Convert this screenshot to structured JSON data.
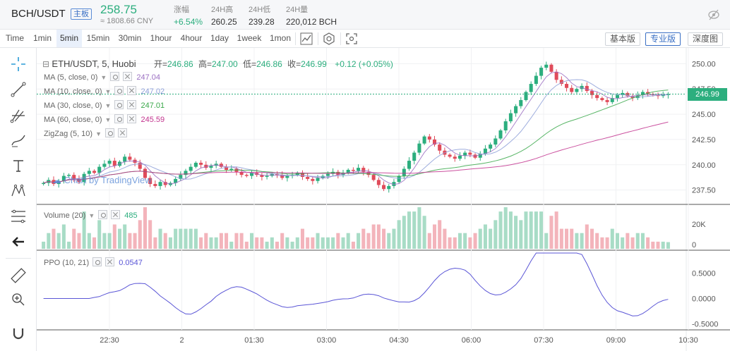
{
  "ticker": {
    "pair": "BCH/USDT",
    "badge": "主板",
    "price": "258.75",
    "cny": "≈ 1808.66 CNY",
    "stats": [
      {
        "label": "涨幅",
        "value": "+6.54%",
        "up": true
      },
      {
        "label": "24H高",
        "value": "260.25"
      },
      {
        "label": "24H低",
        "value": "239.28"
      },
      {
        "label": "24H量",
        "value": "220,012 BCH"
      }
    ]
  },
  "toolbar": {
    "timeframes": [
      "Time",
      "1min",
      "5min",
      "15min",
      "30min",
      "1hour",
      "4hour",
      "1day",
      "1week",
      "1mon"
    ],
    "active_timeframe": "5min",
    "views": [
      "基本版",
      "专业版",
      "深度图"
    ],
    "active_view": "专业版"
  },
  "legend": {
    "symbol": "ETH/USDT, 5, Huobi",
    "open_label": "开=",
    "open": "246.86",
    "high_label": "高=",
    "high": "247.00",
    "low_label": "低=",
    "low": "246.86",
    "close_label": "收=",
    "close": "246.99",
    "change": "+0.12 (+0.05%)"
  },
  "indicators": [
    {
      "name": "MA (5, close, 0)",
      "value": "247.04",
      "color": "#9b6fc2"
    },
    {
      "name": "MA (10, close, 0)",
      "value": "247.02",
      "color": "#8ea0d8"
    },
    {
      "name": "MA (30, close, 0)",
      "value": "247.01",
      "color": "#3aa84a"
    },
    {
      "name": "MA (60, close, 0)",
      "value": "245.59",
      "color": "#c2338e"
    },
    {
      "name": "ZigZag (5, 10)",
      "value": "",
      "color": "#888888"
    }
  ],
  "watermark": "Chart by TradingView",
  "volume_legend": {
    "name": "Volume (20)",
    "value": "485"
  },
  "ppo_legend": {
    "name": "PPO (10, 21)",
    "value": "0.0547"
  },
  "price_axis": [
    "250.00",
    "247.50",
    "245.00",
    "242.50",
    "240.00",
    "237.50"
  ],
  "last_price_tag": "246.99",
  "volume_axis": [
    "20K",
    "0"
  ],
  "ppo_axis": [
    "0.5000",
    "0.0000",
    "-0.5000"
  ],
  "time_axis": [
    "22:30",
    "2",
    "01:30",
    "03:00",
    "04:30",
    "06:00",
    "07:30",
    "09:00",
    "10:30"
  ],
  "colors": {
    "up": "#2cae7e",
    "down": "#e04b5a",
    "accent": "#3a6fc4",
    "ppo_line": "#5a55d6"
  },
  "chart_data": {
    "type": "candlestick",
    "close_series": [
      238.2,
      238.5,
      238.1,
      238.4,
      238.9,
      239.0,
      238.6,
      238.3,
      239.1,
      239.4,
      239.2,
      239.8,
      240.1,
      240.4,
      239.9,
      240.3,
      240.8,
      240.5,
      240.2,
      239.6,
      238.7,
      238.1,
      237.9,
      238.3,
      238.0,
      238.2,
      238.6,
      239.0,
      239.4,
      239.8,
      240.2,
      240.0,
      239.7,
      239.9,
      240.1,
      239.8,
      239.5,
      239.6,
      239.3,
      239.0,
      238.9,
      239.2,
      239.0,
      238.8,
      238.9,
      239.1,
      239.0,
      238.7,
      238.9,
      239.0,
      239.2,
      238.8,
      238.6,
      238.4,
      238.7,
      238.9,
      239.1,
      239.3,
      239.0,
      239.2,
      239.5,
      239.4,
      239.7,
      239.3,
      239.0,
      238.5,
      238.0,
      237.6,
      237.9,
      238.3,
      238.9,
      239.6,
      240.4,
      241.2,
      242.1,
      242.8,
      242.5,
      242.0,
      241.4,
      241.0,
      240.8,
      240.6,
      240.9,
      241.2,
      241.0,
      240.7,
      241.1,
      241.6,
      242.0,
      242.6,
      243.4,
      244.3,
      245.1,
      245.8,
      246.4,
      247.2,
      248.0,
      248.8,
      249.6,
      249.9,
      249.2,
      248.4,
      248.0,
      247.6,
      247.2,
      247.5,
      247.8,
      247.3,
      246.9,
      246.6,
      246.4,
      246.2,
      246.6,
      246.9,
      247.1,
      246.8,
      246.6,
      246.9,
      247.2,
      247.0,
      246.9,
      246.8,
      246.9,
      246.99
    ],
    "volume_unit": "BCH",
    "ppo_range": [
      -0.5,
      0.5
    ],
    "price_range": [
      236.5,
      251.0
    ]
  }
}
